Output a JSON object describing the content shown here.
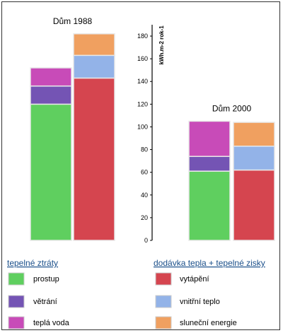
{
  "chart_data": {
    "type": "bar",
    "stacked": true,
    "unit_label": "kWh.m-2 rok-1",
    "ylim": [
      0,
      185
    ],
    "yticks": [
      0,
      20,
      40,
      60,
      80,
      100,
      120,
      140,
      160,
      180
    ],
    "groups": [
      {
        "title": "Dům 1988",
        "losses": [
          {
            "name": "prostup",
            "value": 120
          },
          {
            "name": "větrání",
            "value": 16
          },
          {
            "name": "teplá voda",
            "value": 16
          }
        ],
        "supply": [
          {
            "name": "vytápění",
            "value": 143
          },
          {
            "name": "vnitřní teplo",
            "value": 20
          },
          {
            "name": "sluneční energie",
            "value": 19
          }
        ]
      },
      {
        "title": "Dům 2000",
        "losses": [
          {
            "name": "prostup",
            "value": 61
          },
          {
            "name": "větrání",
            "value": 13
          },
          {
            "name": "teplá voda",
            "value": 31
          }
        ],
        "supply": [
          {
            "name": "vytápění",
            "value": 62
          },
          {
            "name": "vnitřní teplo",
            "value": 21
          },
          {
            "name": "sluneční energie",
            "value": 21
          }
        ]
      }
    ],
    "colors": {
      "prostup": "#5fcf5f",
      "větrání": "#7454b4",
      "teplá voda": "#c84bb8",
      "vytápění": "#d5454f",
      "vnitřní teplo": "#93b3e8",
      "sluneční energie": "#f0a060"
    },
    "legend": {
      "losses_heading": "tepelné ztráty",
      "supply_heading": "dodávka tepla + tepelné zisky",
      "losses_items": [
        "prostup",
        "větrání",
        "teplá voda"
      ],
      "supply_items": [
        "vytápění",
        "vnitřní teplo",
        "sluneční energie"
      ]
    }
  }
}
